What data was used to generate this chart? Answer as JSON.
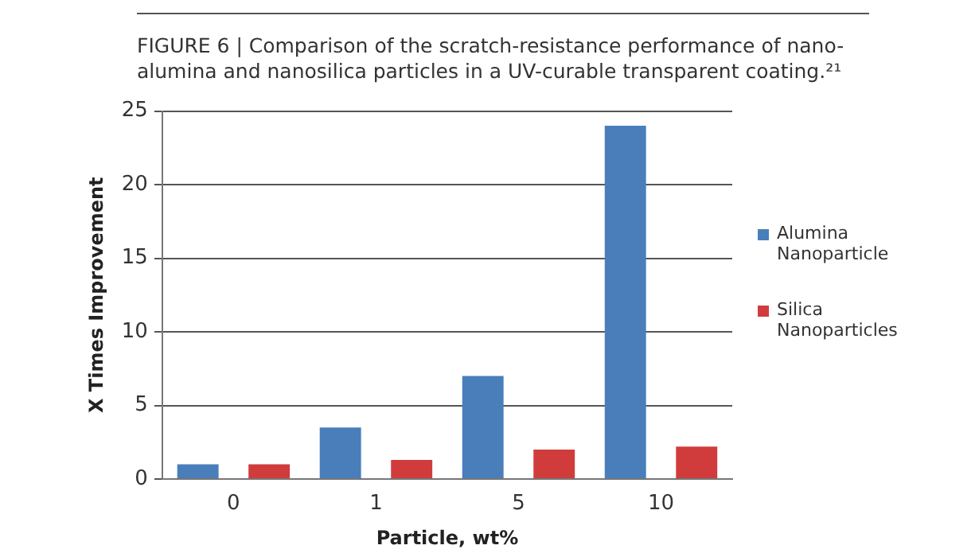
{
  "chart_data": {
    "type": "bar",
    "title": "FIGURE 6 | Comparison of the scratch-resistance performance of nano-alumina and nanosilica particles in a UV-curable transparent coating.²¹",
    "xlabel": "Particle, wt%",
    "ylabel": "X Times Improvement",
    "categories": [
      "0",
      "1",
      "5",
      "10"
    ],
    "series": [
      {
        "name": "Alumina Nanoparticle",
        "color": "#4a7ebb",
        "values": [
          1,
          3.5,
          7,
          24
        ]
      },
      {
        "name": "Silica Nanoparticles",
        "color": "#d03c3c",
        "values": [
          1,
          1.3,
          2,
          2.2
        ]
      }
    ],
    "ylim": [
      0,
      25
    ],
    "yticks": [
      0,
      5,
      10,
      15,
      20,
      25
    ],
    "grid": "y",
    "legend": "right"
  }
}
